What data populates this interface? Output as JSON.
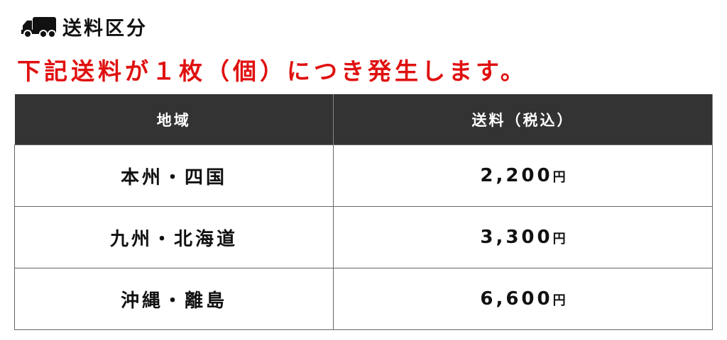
{
  "header": {
    "title": "送料区分",
    "icon": "truck-icon"
  },
  "notice": {
    "text": "下記送料が１枚（個）につき発生します。",
    "color": "#e01010"
  },
  "table": {
    "columns": [
      "地域",
      "送料（税込）"
    ],
    "rows": [
      {
        "region": "本州・四国",
        "price": "2,200",
        "unit": "円"
      },
      {
        "region": "九州・北海道",
        "price": "3,300",
        "unit": "円"
      },
      {
        "region": "沖縄・離島",
        "price": "6,600",
        "unit": "円"
      }
    ]
  }
}
